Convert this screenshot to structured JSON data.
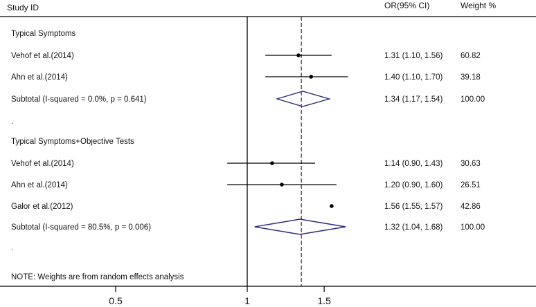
{
  "chart_data": {
    "type": "forest",
    "header": {
      "study_col": "Study  ID",
      "effect_col": "OR(95% CI)",
      "weight_col": "Weight  %"
    },
    "x_ticks": [
      {
        "value": 0.5,
        "label": "0.5"
      },
      {
        "value": 1,
        "label": "1"
      },
      {
        "value": 1.5,
        "label": "1.5"
      }
    ],
    "null_line": 1,
    "overall_dashed_line": 1.33,
    "rows": [
      {
        "kind": "group",
        "label": "Typical Symptoms"
      },
      {
        "kind": "study",
        "label": "Vehof et al.(2014)",
        "or": 1.31,
        "lo": 1.1,
        "hi": 1.56,
        "ci_text": "1.31 (1.10, 1.56)",
        "weight": "60.82"
      },
      {
        "kind": "study",
        "label": "Ahn et al.(2014)",
        "or": 1.4,
        "lo": 1.1,
        "hi": 1.7,
        "ci_text": "1.40 (1.10, 1.70)",
        "weight": "39.18"
      },
      {
        "kind": "subtotal",
        "label": "Subtotal  (I-squared = 0.0%, p = 0.641)",
        "or": 1.34,
        "lo": 1.17,
        "hi": 1.54,
        "ci_text": "1.34 (1.17, 1.54)",
        "weight": "100.00"
      },
      {
        "kind": "spacer",
        "label": "."
      },
      {
        "kind": "group",
        "label": "Typical Symptoms+Objective Tests"
      },
      {
        "kind": "study",
        "label": "Vehof et al.(2014)",
        "or": 1.14,
        "lo": 0.9,
        "hi": 1.43,
        "ci_text": "1.14 (0.90, 1.43)",
        "weight": "30.63"
      },
      {
        "kind": "study",
        "label": "Ahn et al.(2014)",
        "or": 1.2,
        "lo": 0.9,
        "hi": 1.6,
        "ci_text": "1.20 (0.90, 1.60)",
        "weight": "26.51"
      },
      {
        "kind": "study",
        "label": "Galor et al.(2012)",
        "or": 1.56,
        "lo": 1.55,
        "hi": 1.57,
        "ci_text": "1.56 (1.55, 1.57)",
        "weight": "42.86"
      },
      {
        "kind": "subtotal",
        "label": "Subtotal  (I-squared = 80.5%, p = 0.006)",
        "or": 1.32,
        "lo": 1.04,
        "hi": 1.68,
        "ci_text": "1.32 (1.04, 1.68)",
        "weight": "100.00"
      },
      {
        "kind": "spacer",
        "label": "."
      },
      {
        "kind": "note",
        "label": "NOTE: Weights are from random effects analysis"
      }
    ]
  }
}
